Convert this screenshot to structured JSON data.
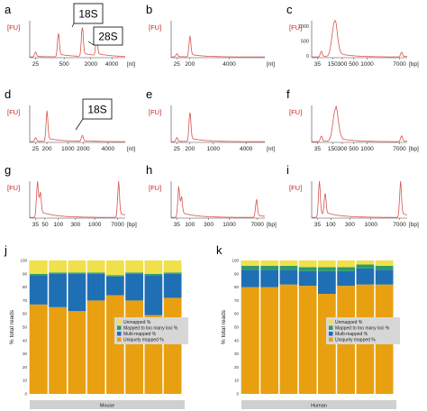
{
  "colors": {
    "trace": "#d9534f",
    "fu_label": "#cc2222",
    "unmapped": "#f0e04a",
    "too_many_loci": "#2e9a6a",
    "multi_mapped": "#1f6fb5",
    "uniquely_mapped": "#e8a010",
    "group_bar": "#d0d0d0",
    "legend_bg": "#d7d7d7"
  },
  "chart_data": [
    {
      "panel": "a",
      "type": "line",
      "ylabel": "[FU]",
      "unit": "[nt]",
      "ticks": [
        "25",
        "500",
        "2000",
        "4000"
      ],
      "callouts": [
        "18S",
        "28S"
      ],
      "peaks": [
        {
          "x": 25,
          "h": 0.12
        },
        {
          "x": 220,
          "h": 0.62
        },
        {
          "x": 1870,
          "h": 0.78
        },
        {
          "x": 3700,
          "h": 0.48
        }
      ]
    },
    {
      "panel": "b",
      "type": "line",
      "ylabel": "[FU]",
      "unit": "[nt]",
      "ticks": [
        "25",
        "200",
        "4000"
      ],
      "peaks": [
        {
          "x": 25,
          "h": 0.08
        },
        {
          "x": 200,
          "h": 0.55
        }
      ]
    },
    {
      "panel": "c",
      "type": "line",
      "ylabel": "[FU]",
      "unit": "[bp]",
      "yticks": [
        "1000",
        "500",
        "0"
      ],
      "ticks": [
        "35",
        "150",
        "300",
        "500",
        "1000",
        "7000"
      ],
      "peaks": [
        {
          "x": 35,
          "h": 0.15
        },
        {
          "x": 150,
          "h": 0.95
        },
        {
          "x": 7000,
          "h": 0.12
        }
      ]
    },
    {
      "panel": "d",
      "type": "line",
      "ylabel": "[FU]",
      "unit": "[nt]",
      "ticks": [
        "25",
        "200",
        "1000",
        "2000",
        "4000"
      ],
      "callouts": [
        "18S"
      ],
      "peaks": [
        {
          "x": 25,
          "h": 0.1
        },
        {
          "x": 200,
          "h": 0.75
        },
        {
          "x": 1870,
          "h": 0.16
        }
      ]
    },
    {
      "panel": "e",
      "type": "line",
      "ylabel": "[FU]",
      "unit": "[nt]",
      "ticks": [
        "25",
        "200",
        "1000",
        "4000"
      ],
      "peaks": [
        {
          "x": 25,
          "h": 0.1
        },
        {
          "x": 200,
          "h": 0.78
        }
      ]
    },
    {
      "panel": "f",
      "type": "line",
      "ylabel": "[FU]",
      "unit": "[bp]",
      "ticks": [
        "35",
        "150",
        "300",
        "500",
        "1000",
        "7000"
      ],
      "peaks": [
        {
          "x": 35,
          "h": 0.15
        },
        {
          "x": 200,
          "h": 0.88
        },
        {
          "x": 7000,
          "h": 0.15
        }
      ]
    },
    {
      "panel": "g",
      "type": "line",
      "ylabel": "[FU]",
      "unit": "[bp]",
      "ticks": [
        "35",
        "50",
        "100",
        "300",
        "1000",
        "7000"
      ],
      "peaks": [
        {
          "x": 35,
          "h": 0.9
        },
        {
          "x": 45,
          "h": 0.55
        },
        {
          "x": 7000,
          "h": 0.88
        }
      ]
    },
    {
      "panel": "h",
      "type": "line",
      "ylabel": "[FU]",
      "unit": "[bp]",
      "ticks": [
        "35",
        "100",
        "300",
        "1000",
        "7000"
      ],
      "peaks": [
        {
          "x": 35,
          "h": 0.75
        },
        {
          "x": 45,
          "h": 0.45
        },
        {
          "x": 7000,
          "h": 0.45
        }
      ]
    },
    {
      "panel": "i",
      "type": "line",
      "ylabel": "[FU]",
      "unit": "[bp]",
      "ticks": [
        "35",
        "100",
        "300",
        "1000",
        "7000"
      ],
      "peaks": [
        {
          "x": 35,
          "h": 0.9
        },
        {
          "x": 45,
          "h": 0.55
        },
        {
          "x": 7000,
          "h": 0.9
        }
      ]
    },
    {
      "panel": "j",
      "type": "bar",
      "stacked": true,
      "ylabel": "% total reads",
      "group": "Mouse",
      "yticks": [
        "100",
        "90",
        "80",
        "70",
        "60",
        "50",
        "40",
        "30",
        "20",
        "10",
        "0"
      ],
      "ylim": [
        0,
        100
      ],
      "legend": [
        "Unmapped %",
        "Mapped to too many loci %",
        "Multi-mapped %",
        "Uniquely mapped %"
      ],
      "series": [
        {
          "name": "Uniquely mapped %",
          "values": [
            67,
            65,
            62,
            70,
            74,
            70,
            59,
            72
          ]
        },
        {
          "name": "Multi-mapped %",
          "values": [
            22,
            25,
            28,
            20,
            14,
            20,
            30,
            18
          ]
        },
        {
          "name": "Mapped to too many loci %",
          "values": [
            1,
            1,
            1,
            1,
            1,
            1,
            1,
            1
          ]
        },
        {
          "name": "Unmapped %",
          "values": [
            10,
            9,
            9,
            9,
            11,
            9,
            10,
            9
          ]
        }
      ]
    },
    {
      "panel": "k",
      "type": "bar",
      "stacked": true,
      "ylabel": "% total reads",
      "group": "Human",
      "yticks": [
        "100",
        "90",
        "80",
        "70",
        "60",
        "50",
        "40",
        "30",
        "20",
        "10",
        "0"
      ],
      "ylim": [
        0,
        100
      ],
      "legend": [
        "Unmapped %",
        "Mapped to too many loci %",
        "Multi-mapped %",
        "Uniquely mapped %"
      ],
      "series": [
        {
          "name": "Uniquely mapped %",
          "values": [
            80,
            80,
            82,
            81,
            75,
            81,
            82,
            82
          ]
        },
        {
          "name": "Multi-mapped %",
          "values": [
            13,
            13,
            11,
            11,
            17,
            11,
            12,
            11
          ]
        },
        {
          "name": "Mapped to too many loci %",
          "values": [
            3,
            3,
            3,
            3,
            3,
            3,
            3,
            3
          ]
        },
        {
          "name": "Unmapped %",
          "values": [
            4,
            4,
            4,
            5,
            5,
            5,
            3,
            4
          ]
        }
      ]
    }
  ]
}
